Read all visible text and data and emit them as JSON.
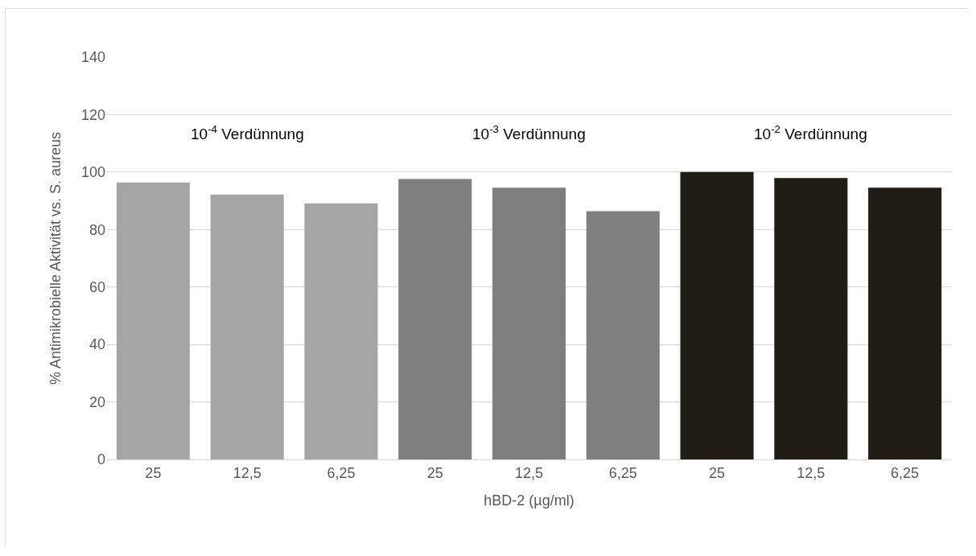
{
  "chart_data": {
    "type": "bar",
    "xlabel": "hBD-2 (µg/ml)",
    "ylabel": "% Antimikrobielle Aktivität vs. S. aureus",
    "categories": [
      "25",
      "12,5",
      "6,25",
      "25",
      "12,5",
      "6,25",
      "25",
      "12,5",
      "6,25"
    ],
    "values": [
      96.4,
      92.2,
      89.1,
      97.6,
      94.6,
      86.4,
      100,
      97.9,
      94.6
    ],
    "colors": [
      "#a5a5a5",
      "#a5a5a5",
      "#a5a5a5",
      "#7f7f7f",
      "#7f7f7f",
      "#7f7f7f",
      "#201e14",
      "#201e14",
      "#201e14"
    ],
    "ylim": [
      0,
      140
    ],
    "yticks": [
      0,
      20,
      40,
      60,
      80,
      100,
      120,
      140
    ],
    "annotations": [
      "10$^{-4}$ Verdünnung",
      "10$^{-3}$ Verdünnung",
      "10$^{-2}$ Verdünnung"
    ],
    "grid": "y"
  }
}
